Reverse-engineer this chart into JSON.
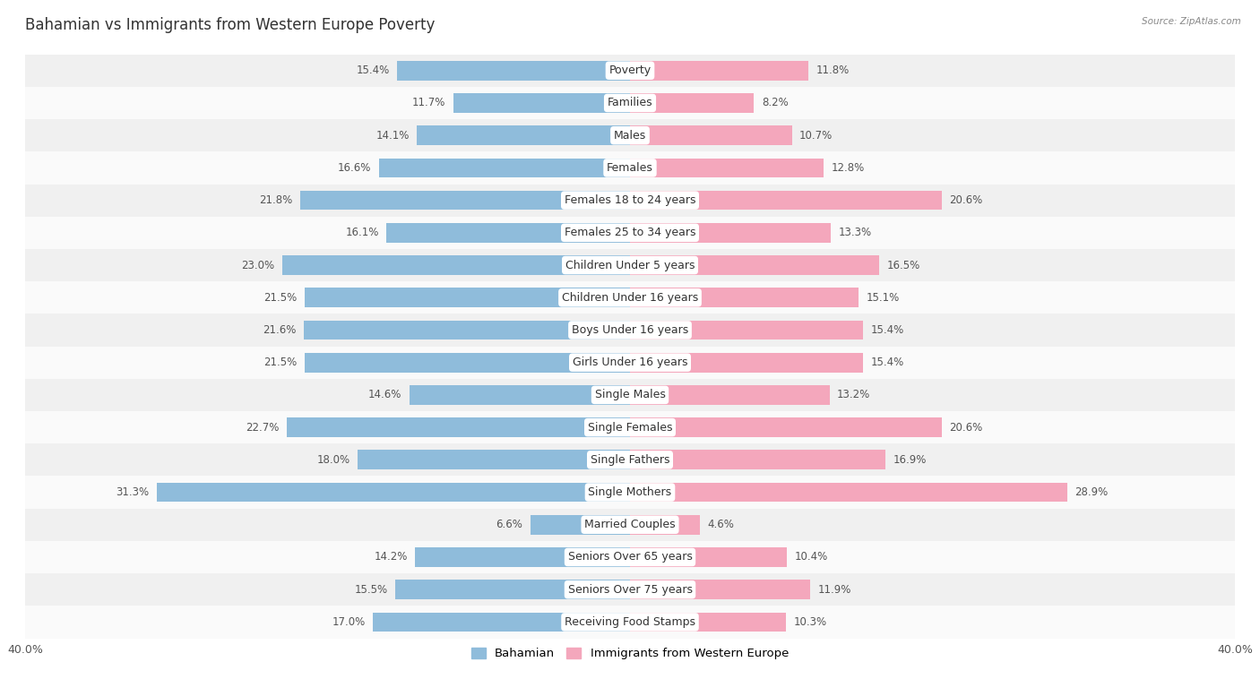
{
  "title": "Bahamian vs Immigrants from Western Europe Poverty",
  "source": "Source: ZipAtlas.com",
  "categories": [
    "Poverty",
    "Families",
    "Males",
    "Females",
    "Females 18 to 24 years",
    "Females 25 to 34 years",
    "Children Under 5 years",
    "Children Under 16 years",
    "Boys Under 16 years",
    "Girls Under 16 years",
    "Single Males",
    "Single Females",
    "Single Fathers",
    "Single Mothers",
    "Married Couples",
    "Seniors Over 65 years",
    "Seniors Over 75 years",
    "Receiving Food Stamps"
  ],
  "bahamian": [
    15.4,
    11.7,
    14.1,
    16.6,
    21.8,
    16.1,
    23.0,
    21.5,
    21.6,
    21.5,
    14.6,
    22.7,
    18.0,
    31.3,
    6.6,
    14.2,
    15.5,
    17.0
  ],
  "western_europe": [
    11.8,
    8.2,
    10.7,
    12.8,
    20.6,
    13.3,
    16.5,
    15.1,
    15.4,
    15.4,
    13.2,
    20.6,
    16.9,
    28.9,
    4.6,
    10.4,
    11.9,
    10.3
  ],
  "bahamian_color": "#8fbcdb",
  "western_europe_color": "#f4a7bc",
  "row_color_even": "#f0f0f0",
  "row_color_odd": "#fafafa",
  "background_color": "#ffffff",
  "xlim": 40.0,
  "label_fontsize": 9,
  "value_fontsize": 8.5,
  "title_fontsize": 12,
  "bar_height": 0.6,
  "legend_bahamian": "Bahamian",
  "legend_western_europe": "Immigrants from Western Europe"
}
